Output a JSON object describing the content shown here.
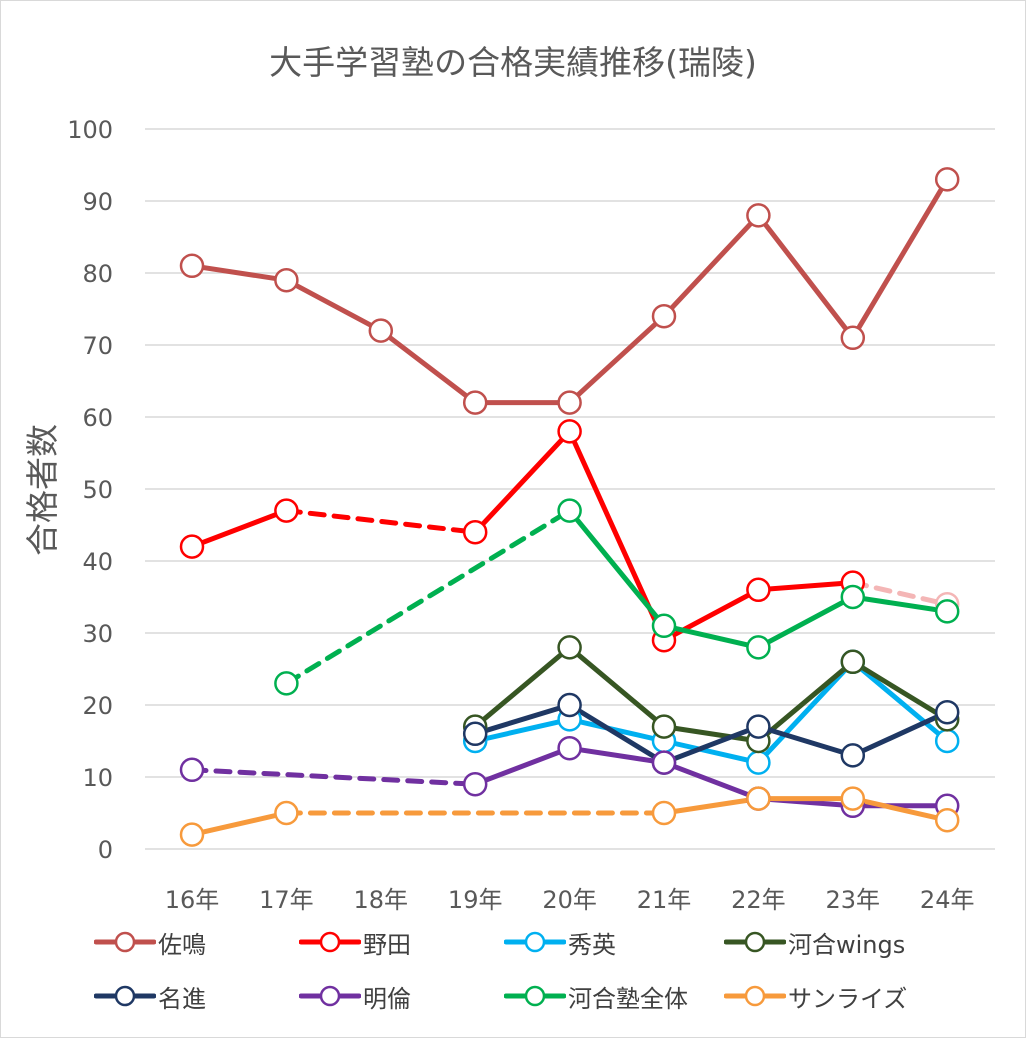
{
  "chart_data": {
    "type": "line",
    "title": "大手学習塾の合格実績推移(瑞陵)",
    "ylabel": "合格者数",
    "xlabel": "",
    "categories": [
      "16年",
      "17年",
      "18年",
      "19年",
      "20年",
      "21年",
      "22年",
      "23年",
      "24年"
    ],
    "ylim": [
      0,
      100
    ],
    "yticks": [
      0,
      10,
      20,
      30,
      40,
      50,
      60,
      70,
      80,
      90,
      100
    ],
    "grid": true,
    "legend_position": "bottom",
    "series": [
      {
        "name": "佐鳴",
        "color": "#c0504d",
        "values": [
          81,
          79,
          72,
          62,
          62,
          74,
          88,
          71,
          93
        ],
        "dashed_segments": []
      },
      {
        "name": "野田",
        "color": "#ff0000",
        "values": [
          42,
          47,
          null,
          44,
          58,
          29,
          36,
          37,
          34
        ],
        "dashed_segments": [
          [
            1,
            3
          ],
          [
            7,
            8
          ]
        ],
        "hollow_last": true
      },
      {
        "name": "秀英",
        "color": "#00b0f0",
        "values": [
          null,
          null,
          null,
          15,
          18,
          15,
          12,
          26,
          15
        ],
        "dashed_segments": []
      },
      {
        "name": "河合wings",
        "color": "#375623",
        "values": [
          null,
          null,
          null,
          17,
          28,
          17,
          15,
          26,
          18
        ],
        "dashed_segments": []
      },
      {
        "name": "名進",
        "color": "#1f3864",
        "values": [
          null,
          null,
          null,
          16,
          20,
          12,
          17,
          13,
          19
        ],
        "dashed_segments": []
      },
      {
        "name": "明倫",
        "color": "#7030a0",
        "values": [
          11,
          null,
          null,
          9,
          14,
          12,
          7,
          6,
          6
        ],
        "dashed_segments": [
          [
            0,
            3
          ]
        ]
      },
      {
        "name": "河合塾全体",
        "color": "#00b050",
        "values": [
          null,
          23,
          null,
          null,
          47,
          31,
          28,
          35,
          33
        ],
        "dashed_segments": [
          [
            1,
            4
          ]
        ]
      },
      {
        "name": "サンライズ",
        "color": "#f79a3c",
        "values": [
          2,
          5,
          null,
          null,
          null,
          5,
          7,
          7,
          4
        ],
        "dashed_segments": [
          [
            1,
            5
          ]
        ]
      }
    ]
  }
}
